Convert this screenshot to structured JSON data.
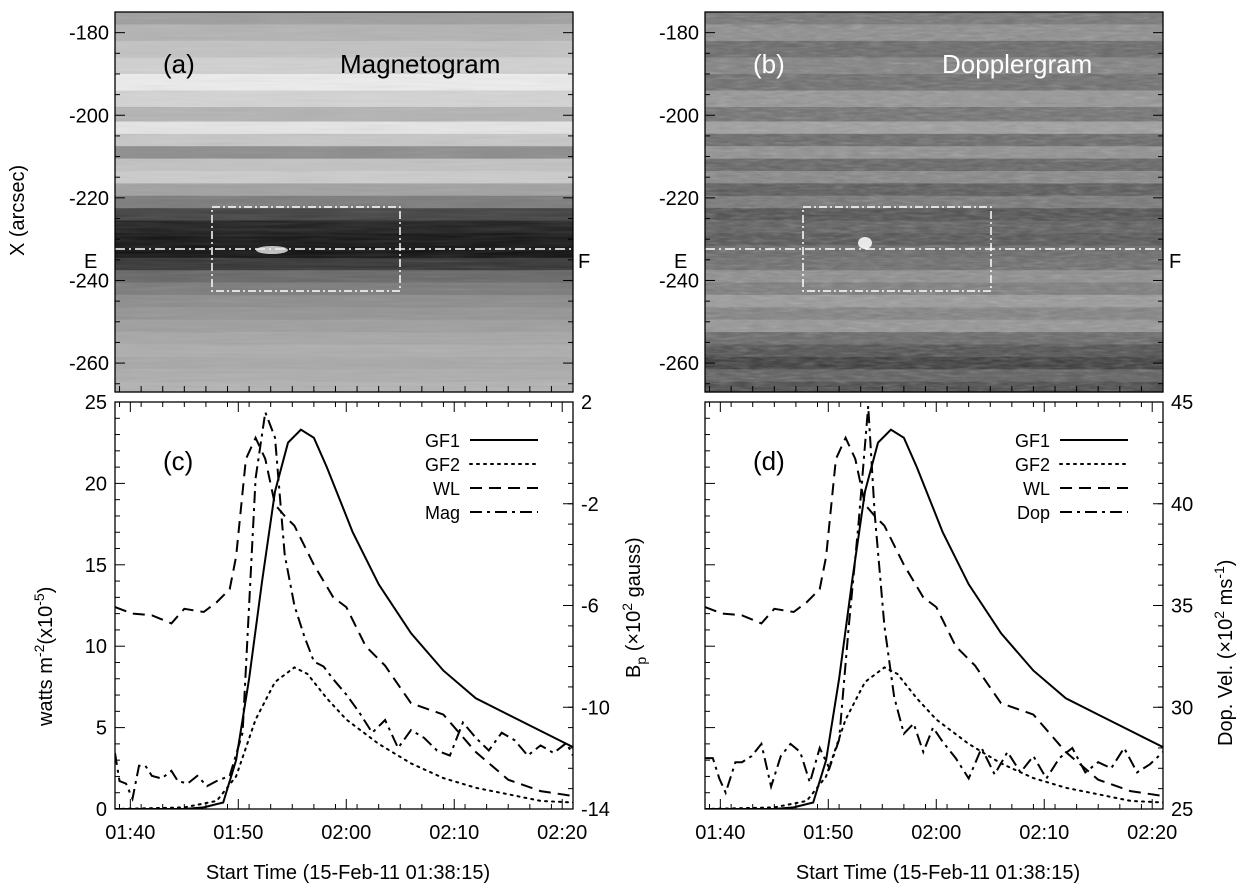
{
  "chart_data": [
    {
      "panel": "(a)",
      "type": "heatmap",
      "title": "Magnetogram",
      "ylabel": "X (arcsec)",
      "yticks": [
        "-180",
        "-200",
        "-220",
        "-240",
        "-260"
      ],
      "ylim": [
        -267,
        -175
      ],
      "markers": {
        "left": "E",
        "right": "F"
      },
      "box": {
        "x": [
          1.838,
          2.095
        ],
        "y": [
          -242,
          -222
        ]
      },
      "cut_y": -232,
      "rows": [
        {
          "y": -176,
          "v": 0.62
        },
        {
          "y": -180,
          "v": 0.7
        },
        {
          "y": -184,
          "v": 0.76
        },
        {
          "y": -188,
          "v": 0.82
        },
        {
          "y": -192,
          "v": 0.93
        },
        {
          "y": -196,
          "v": 0.83
        },
        {
          "y": -200,
          "v": 0.7
        },
        {
          "y": -203,
          "v": 0.9
        },
        {
          "y": -206,
          "v": 0.78
        },
        {
          "y": -209,
          "v": 0.55
        },
        {
          "y": -212,
          "v": 0.76
        },
        {
          "y": -215,
          "v": 0.8
        },
        {
          "y": -218,
          "v": 0.63
        },
        {
          "y": -221,
          "v": 0.48
        },
        {
          "y": -224,
          "v": 0.25
        },
        {
          "y": -227,
          "v": 0.12
        },
        {
          "y": -230,
          "v": 0.08
        },
        {
          "y": -233,
          "v": 0.06
        },
        {
          "y": -236,
          "v": 0.2
        },
        {
          "y": -239,
          "v": 0.4
        },
        {
          "y": -242,
          "v": 0.48
        },
        {
          "y": -245,
          "v": 0.55
        },
        {
          "y": -248,
          "v": 0.58
        },
        {
          "y": -251,
          "v": 0.62
        },
        {
          "y": -254,
          "v": 0.65
        },
        {
          "y": -257,
          "v": 0.68
        },
        {
          "y": -260,
          "v": 0.66
        },
        {
          "y": -263,
          "v": 0.68
        },
        {
          "y": -266,
          "v": 0.7
        }
      ]
    },
    {
      "panel": "(b)",
      "type": "heatmap",
      "title": "Dopplergram",
      "yticks": [
        "-180",
        "-200",
        "-220",
        "-240",
        "-260"
      ],
      "ylim": [
        -267,
        -175
      ],
      "markers": {
        "left": "E",
        "right": "F"
      },
      "box": {
        "x": [
          1.838,
          2.095
        ],
        "y": [
          -242,
          -222
        ]
      },
      "cut_y": -232,
      "rows": [
        {
          "y": -176,
          "v": 0.45
        },
        {
          "y": -180,
          "v": 0.55
        },
        {
          "y": -184,
          "v": 0.4
        },
        {
          "y": -188,
          "v": 0.5
        },
        {
          "y": -192,
          "v": 0.42
        },
        {
          "y": -196,
          "v": 0.58
        },
        {
          "y": -200,
          "v": 0.44
        },
        {
          "y": -203,
          "v": 0.62
        },
        {
          "y": -206,
          "v": 0.4
        },
        {
          "y": -209,
          "v": 0.56
        },
        {
          "y": -212,
          "v": 0.38
        },
        {
          "y": -215,
          "v": 0.52
        },
        {
          "y": -218,
          "v": 0.34
        },
        {
          "y": -221,
          "v": 0.46
        },
        {
          "y": -224,
          "v": 0.3
        },
        {
          "y": -227,
          "v": 0.36
        },
        {
          "y": -230,
          "v": 0.32
        },
        {
          "y": -233,
          "v": 0.4
        },
        {
          "y": -236,
          "v": 0.42
        },
        {
          "y": -239,
          "v": 0.55
        },
        {
          "y": -242,
          "v": 0.48
        },
        {
          "y": -245,
          "v": 0.6
        },
        {
          "y": -248,
          "v": 0.5
        },
        {
          "y": -251,
          "v": 0.58
        },
        {
          "y": -254,
          "v": 0.4
        },
        {
          "y": -257,
          "v": 0.3
        },
        {
          "y": -260,
          "v": 0.22
        },
        {
          "y": -263,
          "v": 0.36
        },
        {
          "y": -266,
          "v": 0.28
        }
      ]
    },
    {
      "panel": "(c)",
      "type": "line",
      "xlabel": "Start Time (15-Feb-11 01:38:15)",
      "ylabel": "watts m-2(x10-5)",
      "ylabel_parts": {
        "a": "watts m",
        "b": "-2",
        "c": "(x10",
        "d": "-5",
        "e": ")"
      },
      "y2label": "Bp (x10² gauss)",
      "y2label_parts": {
        "a": "B",
        "b": "p",
        "c": " (×10",
        "d": "2",
        "e": " gauss)"
      },
      "xticks": [
        "01:40",
        "01:50",
        "02:00",
        "02:10",
        "02:20"
      ],
      "yticks": [
        "0",
        "5",
        "10",
        "15",
        "20",
        "25"
      ],
      "y2ticks": [
        "2",
        "-2",
        "-6",
        "-10",
        "-14"
      ],
      "xlim": [
        1.643,
        2.35
      ],
      "ylim": [
        0,
        25
      ],
      "y2lim": [
        -14,
        2
      ],
      "legend": [
        "GF1",
        "GF2",
        "WL",
        "Mag"
      ],
      "series": [
        {
          "name": "GF1",
          "style": "solid",
          "axis": "left",
          "x": [
            1.643,
            1.7,
            1.75,
            1.78,
            1.81,
            1.83,
            1.85,
            1.87,
            1.89,
            1.91,
            1.93,
            1.95,
            1.97,
            1.99,
            2.01,
            2.05,
            2.1,
            2.15,
            2.2,
            2.25,
            2.3,
            2.35
          ],
          "y": [
            0.0,
            0.0,
            0.0,
            0.1,
            0.4,
            3.0,
            8.0,
            14.0,
            19.5,
            22.5,
            23.3,
            22.8,
            21.0,
            19.0,
            17.0,
            13.8,
            10.8,
            8.5,
            6.8,
            5.8,
            4.8,
            3.8
          ]
        },
        {
          "name": "GF2",
          "style": "dotted",
          "axis": "left",
          "x": [
            1.643,
            1.75,
            1.8,
            1.83,
            1.86,
            1.89,
            1.92,
            1.94,
            1.97,
            2.0,
            2.05,
            2.1,
            2.15,
            2.2,
            2.25,
            2.3,
            2.35
          ],
          "y": [
            0.0,
            0.1,
            0.5,
            2.0,
            5.5,
            7.8,
            8.7,
            8.3,
            6.8,
            5.5,
            4.0,
            2.8,
            1.9,
            1.3,
            0.9,
            0.5,
            0.4
          ]
        },
        {
          "name": "WL",
          "style": "dashed",
          "axis": "left",
          "x": [
            1.643,
            1.67,
            1.7,
            1.73,
            1.75,
            1.78,
            1.8,
            1.82,
            1.83,
            1.845,
            1.86,
            1.875,
            1.89,
            1.905,
            1.92,
            1.95,
            1.98,
            2.0,
            2.03,
            2.06,
            2.1,
            2.15,
            2.2,
            2.25,
            2.3,
            2.35
          ],
          "y": [
            12.4,
            12.0,
            11.9,
            11.4,
            12.3,
            12.1,
            12.7,
            13.5,
            15.5,
            21.5,
            22.8,
            21.5,
            18.7,
            18.0,
            17.4,
            15.0,
            13.0,
            12.4,
            10.0,
            8.8,
            6.5,
            5.8,
            3.5,
            1.8,
            1.1,
            0.8
          ]
        },
        {
          "name": "Mag",
          "style": "dashdot",
          "axis": "right",
          "x": [
            1.643,
            1.65,
            1.66,
            1.67,
            1.68,
            1.69,
            1.7,
            1.715,
            1.73,
            1.74,
            1.755,
            1.77,
            1.785,
            1.8,
            1.82,
            1.84,
            1.86,
            1.875,
            1.89,
            1.905,
            1.92,
            1.935,
            1.95,
            1.965,
            1.98,
            2.0,
            2.02,
            2.04,
            2.06,
            2.08,
            2.1,
            2.12,
            2.14,
            2.16,
            2.18,
            2.2,
            2.22,
            2.24,
            2.26,
            2.28,
            2.3,
            2.32,
            2.34,
            2.35
          ],
          "y": [
            -11.8,
            -12.9,
            -13.0,
            -13.6,
            -12.3,
            -12.3,
            -12.7,
            -12.8,
            -12.5,
            -12.9,
            -13.0,
            -12.7,
            -13.1,
            -12.9,
            -12.7,
            -11.0,
            -1.0,
            1.6,
            0.6,
            -4.0,
            -6.0,
            -7.2,
            -8.2,
            -8.4,
            -8.9,
            -9.5,
            -10.2,
            -11.0,
            -10.5,
            -11.6,
            -10.9,
            -11.2,
            -11.7,
            -11.9,
            -10.6,
            -11.2,
            -11.7,
            -11.0,
            -11.3,
            -11.9,
            -11.5,
            -11.8,
            -11.4,
            -11.9
          ]
        }
      ]
    },
    {
      "panel": "(d)",
      "type": "line",
      "xlabel": "Start Time (15-Feb-11 01:38:15)",
      "y2label": "Dop. Vel. (x10² ms-1)",
      "y2label_parts": {
        "a": "Dop. Vel. (×10",
        "b": "2",
        "c": " ms",
        "d": "-1",
        "e": ")"
      },
      "xticks": [
        "01:40",
        "01:50",
        "02:00",
        "02:10",
        "02:20"
      ],
      "y2ticks": [
        "25",
        "30",
        "35",
        "40",
        "45"
      ],
      "xlim": [
        1.643,
        2.35
      ],
      "ylim": [
        0,
        25
      ],
      "y2lim": [
        25,
        45
      ],
      "legend": [
        "GF1",
        "GF2",
        "WL",
        "Dop"
      ],
      "series": [
        {
          "name": "GF1",
          "style": "solid",
          "axis": "left",
          "x": [
            1.643,
            1.7,
            1.75,
            1.78,
            1.81,
            1.83,
            1.85,
            1.87,
            1.89,
            1.91,
            1.93,
            1.95,
            1.97,
            1.99,
            2.01,
            2.05,
            2.1,
            2.15,
            2.2,
            2.25,
            2.3,
            2.35
          ],
          "y": [
            0.0,
            0.0,
            0.0,
            0.1,
            0.4,
            3.0,
            8.0,
            14.0,
            19.5,
            22.5,
            23.3,
            22.8,
            21.0,
            19.0,
            17.0,
            13.8,
            10.8,
            8.5,
            6.8,
            5.8,
            4.8,
            3.8
          ]
        },
        {
          "name": "GF2",
          "style": "dotted",
          "axis": "left",
          "x": [
            1.643,
            1.75,
            1.8,
            1.83,
            1.86,
            1.89,
            1.92,
            1.94,
            1.97,
            2.0,
            2.05,
            2.1,
            2.15,
            2.2,
            2.25,
            2.3,
            2.35
          ],
          "y": [
            0.0,
            0.1,
            0.5,
            2.0,
            5.5,
            7.8,
            8.7,
            8.3,
            6.8,
            5.5,
            4.0,
            2.8,
            1.9,
            1.3,
            0.9,
            0.5,
            0.4
          ]
        },
        {
          "name": "WL",
          "style": "dashed",
          "axis": "left",
          "x": [
            1.643,
            1.67,
            1.7,
            1.73,
            1.75,
            1.78,
            1.8,
            1.82,
            1.83,
            1.845,
            1.86,
            1.875,
            1.89,
            1.905,
            1.92,
            1.95,
            1.98,
            2.0,
            2.03,
            2.06,
            2.1,
            2.15,
            2.2,
            2.25,
            2.3,
            2.35
          ],
          "y": [
            12.4,
            12.0,
            11.9,
            11.4,
            12.3,
            12.1,
            12.7,
            13.5,
            15.5,
            21.5,
            22.8,
            21.5,
            18.7,
            18.0,
            17.4,
            15.0,
            13.0,
            12.4,
            10.0,
            8.8,
            6.5,
            5.8,
            3.5,
            1.8,
            1.1,
            0.8
          ]
        },
        {
          "name": "Dop",
          "style": "dashdot",
          "axis": "right",
          "x": [
            1.643,
            1.655,
            1.665,
            1.675,
            1.69,
            1.7,
            1.715,
            1.73,
            1.745,
            1.76,
            1.775,
            1.79,
            1.805,
            1.82,
            1.835,
            1.85,
            1.865,
            1.88,
            1.895,
            1.905,
            1.92,
            1.935,
            1.95,
            1.965,
            1.98,
            1.995,
            2.01,
            2.03,
            2.05,
            2.07,
            2.09,
            2.11,
            2.13,
            2.15,
            2.17,
            2.19,
            2.21,
            2.23,
            2.25,
            2.27,
            2.29,
            2.31,
            2.33,
            2.35
          ],
          "y": [
            27.5,
            27.5,
            26.5,
            25.8,
            27.3,
            27.3,
            27.6,
            28.2,
            26.1,
            27.6,
            28.2,
            27.8,
            26.3,
            28.0,
            27.0,
            28.4,
            34.0,
            39.0,
            44.8,
            39.5,
            34.0,
            30.5,
            28.7,
            29.2,
            27.8,
            29.0,
            28.3,
            27.5,
            26.5,
            28.0,
            26.7,
            27.8,
            26.8,
            27.6,
            26.5,
            27.5,
            28.0,
            26.8,
            27.3,
            27.0,
            28.0,
            26.8,
            27.2,
            27.8
          ]
        }
      ]
    }
  ]
}
